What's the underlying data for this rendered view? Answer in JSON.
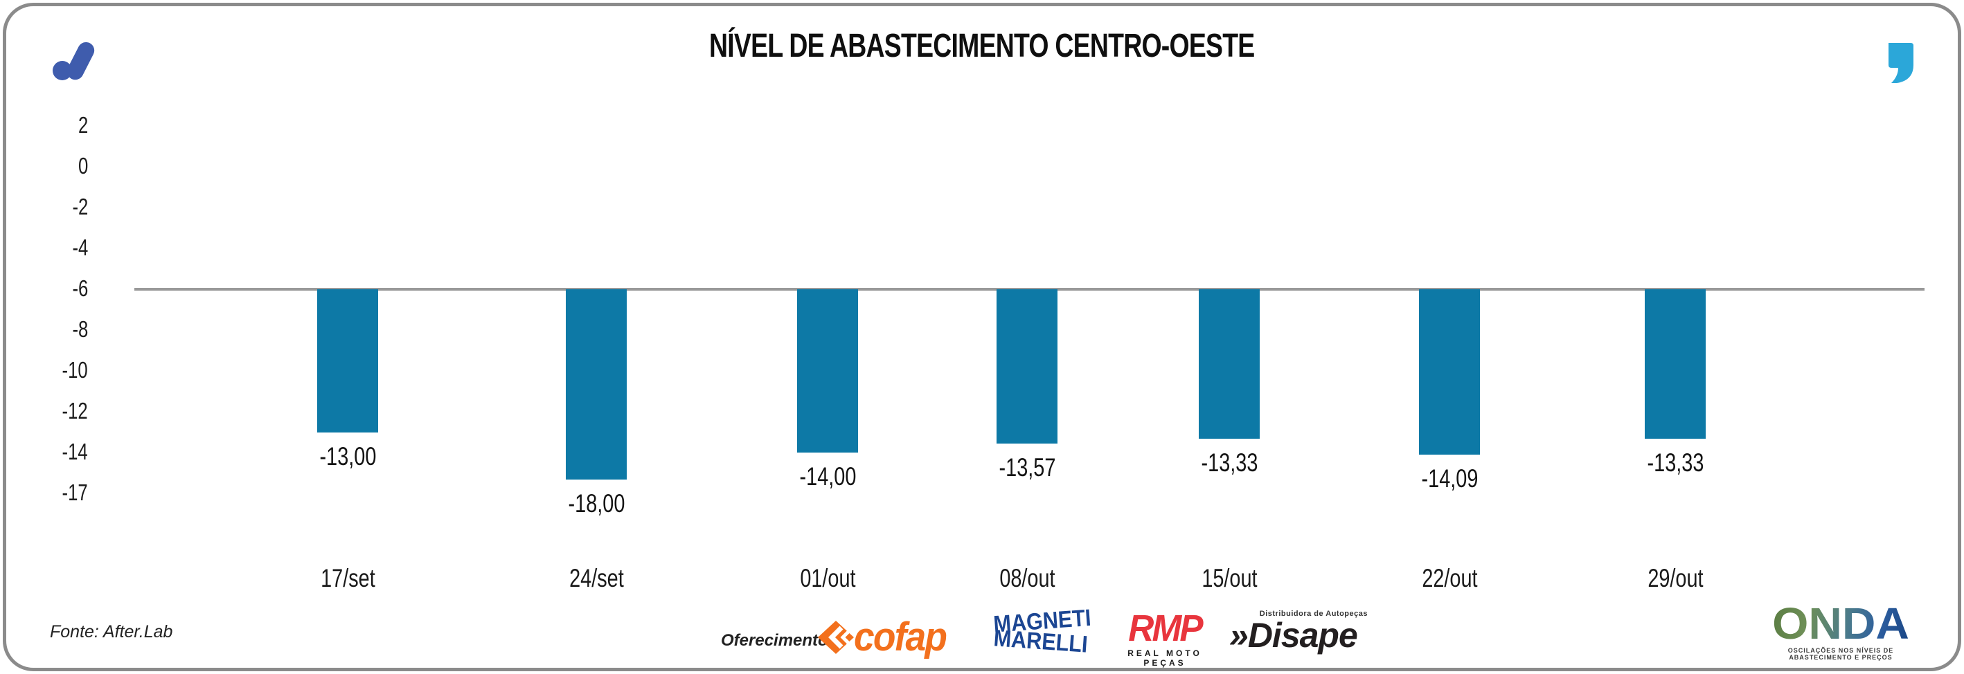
{
  "header": {
    "title": "NÍVEL DE ABASTECIMENTO CENTRO-OESTE",
    "brand_logo": "after-lab-logo",
    "quote_icon_color": "#2ba7d9",
    "brand_logo_color": "#3f5cad"
  },
  "chart_data": {
    "type": "bar",
    "title": "NÍVEL DE ABASTECIMENTO CENTRO-OESTE",
    "categories": [
      "17/set",
      "24/set",
      "01/out",
      "08/out",
      "15/out",
      "22/out",
      "29/out"
    ],
    "values": [
      -13.0,
      -18.0,
      -14.0,
      -13.57,
      -13.33,
      -14.09,
      -13.33
    ],
    "value_labels": [
      "-13,00",
      "-18,00",
      "-14,00",
      "-13,57",
      "-13,33",
      "-14,09",
      "-13,33"
    ],
    "y_ticks": [
      "2",
      "0",
      "-2",
      "-4",
      "-6",
      "-8",
      "-10",
      "-12",
      "-14",
      "-17"
    ],
    "ylim": [
      2,
      -17
    ],
    "baseline_value": -6,
    "xlabel": "",
    "ylabel": "",
    "grid": false,
    "legend": false,
    "bar_color": "#0d79a6",
    "axis_line_color": "#999999"
  },
  "footer": {
    "source": "Fonte: After.Lab",
    "sponsor_label": "Oferecimento:",
    "sponsors": {
      "cofap": {
        "name": "cofap",
        "color": "#f3701d"
      },
      "magneti": {
        "line1": "MAGNETI",
        "line2": "MARELLI",
        "color": "#1c4693"
      },
      "rmp": {
        "name": "RMP",
        "subtitle": "REAL MOTO PEÇAS",
        "color": "#e8353d"
      },
      "disape": {
        "name": "Disape",
        "prefix": "»",
        "subtitle": "Distribuidora de Autopeças"
      }
    },
    "onda": {
      "name": "ONDA",
      "tagline": "OSCILAÇÕES NOS NÍVEIS DE ABASTECIMENTO E PREÇOS"
    }
  }
}
